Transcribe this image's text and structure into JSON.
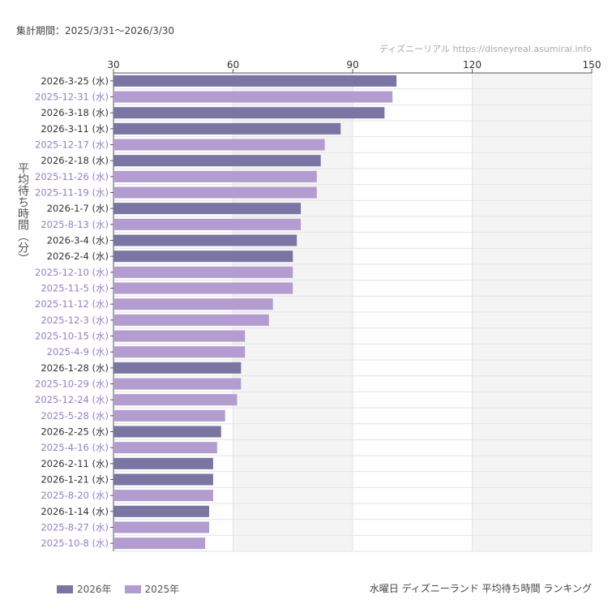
{
  "header": {
    "period": "集計期間：2025/3/31〜2026/3/30",
    "credit": "ディズニーリアル https://disneyreal.asumirai.info"
  },
  "chart_data": {
    "type": "bar",
    "orientation": "horizontal",
    "title": "水曜日 ディズニーランド 平均待ち時間 ランキング",
    "ylabel": "平均待ち時間（分）",
    "xlim": [
      30,
      150
    ],
    "xticks": [
      30,
      60,
      90,
      120,
      150
    ],
    "grid": true,
    "legend": "bottom-left",
    "categories": [
      "2026-3-25 (水)",
      "2025-12-31 (水)",
      "2026-3-18 (水)",
      "2026-3-11 (水)",
      "2025-12-17 (水)",
      "2026-2-18 (水)",
      "2025-11-26 (水)",
      "2025-11-19 (水)",
      "2026-1-7 (水)",
      "2025-8-13 (水)",
      "2026-3-4 (水)",
      "2026-2-4 (水)",
      "2025-12-10 (水)",
      "2025-11-5 (水)",
      "2025-11-12 (水)",
      "2025-12-3 (水)",
      "2025-10-15 (水)",
      "2025-4-9 (水)",
      "2026-1-28 (水)",
      "2025-10-29 (水)",
      "2025-12-24 (水)",
      "2025-5-28 (水)",
      "2026-2-25 (水)",
      "2025-4-16 (水)",
      "2026-2-11 (水)",
      "2026-1-21 (水)",
      "2025-8-20 (水)",
      "2026-1-14 (水)",
      "2025-8-27 (水)",
      "2025-10-8 (水)"
    ],
    "values": [
      101,
      100,
      98,
      87,
      83,
      82,
      81,
      81,
      77,
      77,
      76,
      75,
      75,
      75,
      70,
      69,
      63,
      63,
      62,
      62,
      61,
      58,
      57,
      56,
      55,
      55,
      55,
      54,
      54,
      53
    ],
    "groups": [
      "2026",
      "2025",
      "2026",
      "2026",
      "2025",
      "2026",
      "2025",
      "2025",
      "2026",
      "2025",
      "2026",
      "2026",
      "2025",
      "2025",
      "2025",
      "2025",
      "2025",
      "2025",
      "2026",
      "2025",
      "2025",
      "2025",
      "2026",
      "2025",
      "2026",
      "2026",
      "2025",
      "2026",
      "2025",
      "2025"
    ],
    "series": [
      {
        "name": "2026年",
        "key": "2026",
        "color": "#7b75a3",
        "label_color": "#333333"
      },
      {
        "name": "2025年",
        "key": "2025",
        "color": "#b39cd0",
        "label_color": "#9a7ec4"
      }
    ]
  }
}
